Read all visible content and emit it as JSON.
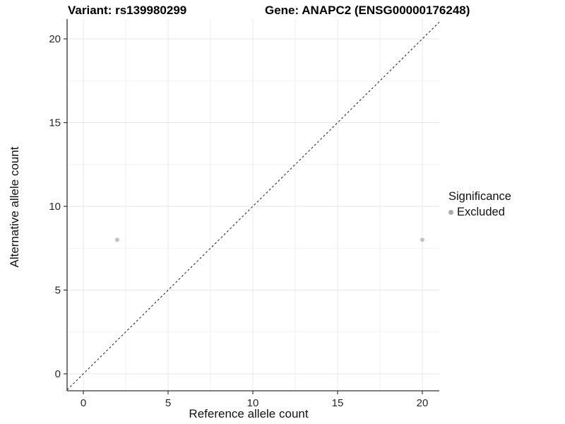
{
  "titles": {
    "variant": "Variant: rs139980299",
    "gene": "Gene: ANAPC2 (ENSG00000176248)"
  },
  "chart_data": {
    "type": "scatter",
    "title_left": "Variant: rs139980299",
    "title_right": "Gene: ANAPC2 (ENSG00000176248)",
    "xlabel": "Reference allele count",
    "ylabel": "Alternative allele count",
    "xlim": [
      -1,
      21
    ],
    "ylim": [
      -1,
      21
    ],
    "xticks": [
      0,
      5,
      10,
      15,
      20
    ],
    "yticks": [
      0,
      5,
      10,
      15,
      20
    ],
    "minor_ticks": [
      2.5,
      7.5,
      12.5,
      17.5
    ],
    "grid": true,
    "series": [
      {
        "name": "Excluded",
        "points": [
          {
            "x": 2,
            "y": 8
          },
          {
            "x": 20,
            "y": 8
          }
        ],
        "color": "#c2c2c2",
        "point_radius": 3
      }
    ],
    "reference_line": {
      "equation": "y = x",
      "style": "dashed",
      "color": "#1a1a1a"
    },
    "legend": {
      "title": "Significance",
      "position": "right",
      "items": [
        {
          "label": "Excluded",
          "color": "#acacac"
        }
      ]
    },
    "colors": {
      "axis_line": "#333333",
      "major_grid": "#e7e7e7",
      "minor_grid": "#f2f2f2",
      "background": "#ffffff"
    }
  }
}
